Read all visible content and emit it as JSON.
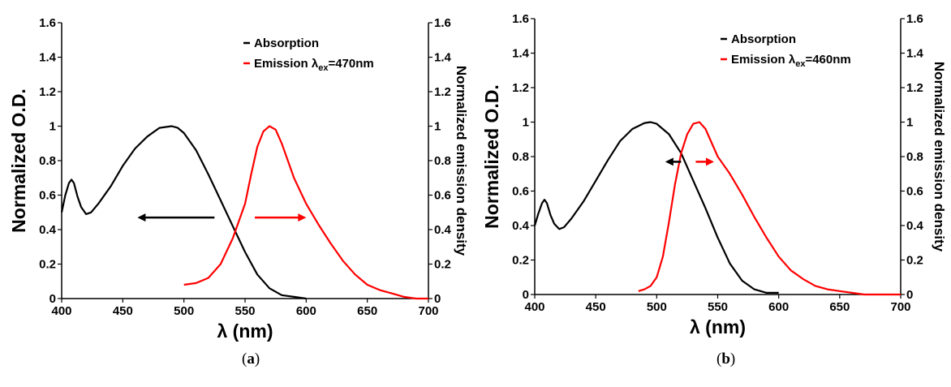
{
  "colors": {
    "absorption": "#000000",
    "emission": "#ff0000",
    "axis": "#000000"
  },
  "chart_data": [
    {
      "type": "line",
      "caption_letter": "a",
      "xlabel": "λ (nm)",
      "ylabel": "Normalized O.D.",
      "y2label": "Normalized emission density",
      "xlim": [
        400,
        700
      ],
      "ylim": [
        0,
        1.6
      ],
      "y2lim": [
        0,
        1.6
      ],
      "xticks": [
        "400",
        "450",
        "500",
        "550",
        "600",
        "650",
        "700"
      ],
      "yticks": [
        "0",
        "0.2",
        "0.4",
        "0.6",
        "0.8",
        "1",
        "1.2",
        "1.4",
        "1.6"
      ],
      "y2ticks": [
        "0",
        "0.2",
        "0.4",
        "0.6",
        "0.8",
        "1",
        "1.2",
        "1.4",
        "1.6"
      ],
      "legend_position": "top-right",
      "series": [
        {
          "name": "Absorption",
          "axis": "left",
          "x": [
            400,
            403,
            406,
            408,
            410,
            413,
            416,
            420,
            424,
            430,
            440,
            450,
            460,
            470,
            480,
            490,
            495,
            500,
            510,
            520,
            530,
            540,
            550,
            560,
            570,
            580,
            590,
            600
          ],
          "y": [
            0.5,
            0.6,
            0.67,
            0.69,
            0.67,
            0.59,
            0.53,
            0.49,
            0.5,
            0.55,
            0.65,
            0.77,
            0.87,
            0.94,
            0.99,
            1.0,
            0.99,
            0.96,
            0.86,
            0.72,
            0.57,
            0.42,
            0.27,
            0.14,
            0.06,
            0.02,
            0.01,
            0.0
          ]
        },
        {
          "name": "Emission λex=470nm",
          "axis": "right",
          "x": [
            500,
            510,
            520,
            530,
            540,
            550,
            555,
            560,
            565,
            570,
            575,
            580,
            590,
            600,
            610,
            620,
            630,
            640,
            650,
            660,
            670,
            680,
            690,
            700
          ],
          "y": [
            0.08,
            0.09,
            0.12,
            0.2,
            0.35,
            0.55,
            0.72,
            0.88,
            0.97,
            1.0,
            0.98,
            0.9,
            0.7,
            0.55,
            0.43,
            0.32,
            0.22,
            0.14,
            0.08,
            0.05,
            0.03,
            0.01,
            0.0,
            0.0
          ]
        }
      ],
      "legend": [
        {
          "label": "Absorption",
          "sub": "",
          "suffix": ""
        },
        {
          "label": "Emission λ",
          "sub": "ex",
          "suffix": "=470nm"
        }
      ],
      "arrows": [
        {
          "from": [
            525,
            0.47
          ],
          "to": [
            462,
            0.47
          ],
          "color": "black"
        },
        {
          "from": [
            558,
            0.47
          ],
          "to": [
            600,
            0.47
          ],
          "color": "red"
        }
      ]
    },
    {
      "type": "line",
      "caption_letter": "b",
      "xlabel": "λ (nm)",
      "ylabel": "Normalized O.D.",
      "y2label": "Normalized emission density",
      "xlim": [
        400,
        700
      ],
      "ylim": [
        0,
        1.6
      ],
      "y2lim": [
        0,
        1.6
      ],
      "xticks": [
        "400",
        "450",
        "500",
        "550",
        "600",
        "650",
        "700"
      ],
      "yticks": [
        "0",
        "0.2",
        "0.4",
        "0.6",
        "0.8",
        "1",
        "1.2",
        "1.4",
        "1.6"
      ],
      "y2ticks": [
        "0",
        "0.2",
        "0.4",
        "0.6",
        "0.8",
        "1",
        "1.2",
        "1.4",
        "1.6"
      ],
      "legend_position": "top-right",
      "series": [
        {
          "name": "Absorption",
          "axis": "left",
          "x": [
            400,
            403,
            406,
            408,
            410,
            413,
            416,
            420,
            424,
            430,
            440,
            450,
            460,
            470,
            480,
            490,
            495,
            500,
            510,
            520,
            530,
            540,
            550,
            560,
            570,
            580,
            590,
            600
          ],
          "y": [
            0.4,
            0.47,
            0.53,
            0.55,
            0.53,
            0.46,
            0.41,
            0.38,
            0.39,
            0.44,
            0.54,
            0.66,
            0.78,
            0.89,
            0.96,
            0.995,
            1.0,
            0.99,
            0.93,
            0.82,
            0.66,
            0.5,
            0.33,
            0.18,
            0.08,
            0.03,
            0.01,
            0.01
          ]
        },
        {
          "name": "Emission λex=460nm",
          "axis": "right",
          "x": [
            485,
            490,
            495,
            500,
            505,
            510,
            515,
            520,
            525,
            530,
            535,
            540,
            545,
            550,
            555,
            560,
            570,
            580,
            590,
            600,
            610,
            620,
            630,
            640,
            650,
            660,
            670,
            680,
            690,
            700
          ],
          "y": [
            0.02,
            0.03,
            0.05,
            0.1,
            0.22,
            0.42,
            0.64,
            0.82,
            0.93,
            0.99,
            1.0,
            0.96,
            0.88,
            0.8,
            0.75,
            0.7,
            0.58,
            0.45,
            0.33,
            0.22,
            0.14,
            0.09,
            0.05,
            0.03,
            0.02,
            0.01,
            0.0,
            0.0,
            0.0,
            0.0
          ]
        }
      ],
      "legend": [
        {
          "label": "Absorption",
          "sub": "",
          "suffix": ""
        },
        {
          "label": "Emission λ",
          "sub": "ex",
          "suffix": "=460nm"
        }
      ],
      "arrows": [
        {
          "from": [
            520,
            0.77
          ],
          "to": [
            507,
            0.77
          ],
          "color": "black"
        },
        {
          "from": [
            532,
            0.77
          ],
          "to": [
            547,
            0.77
          ],
          "color": "red"
        }
      ]
    }
  ]
}
